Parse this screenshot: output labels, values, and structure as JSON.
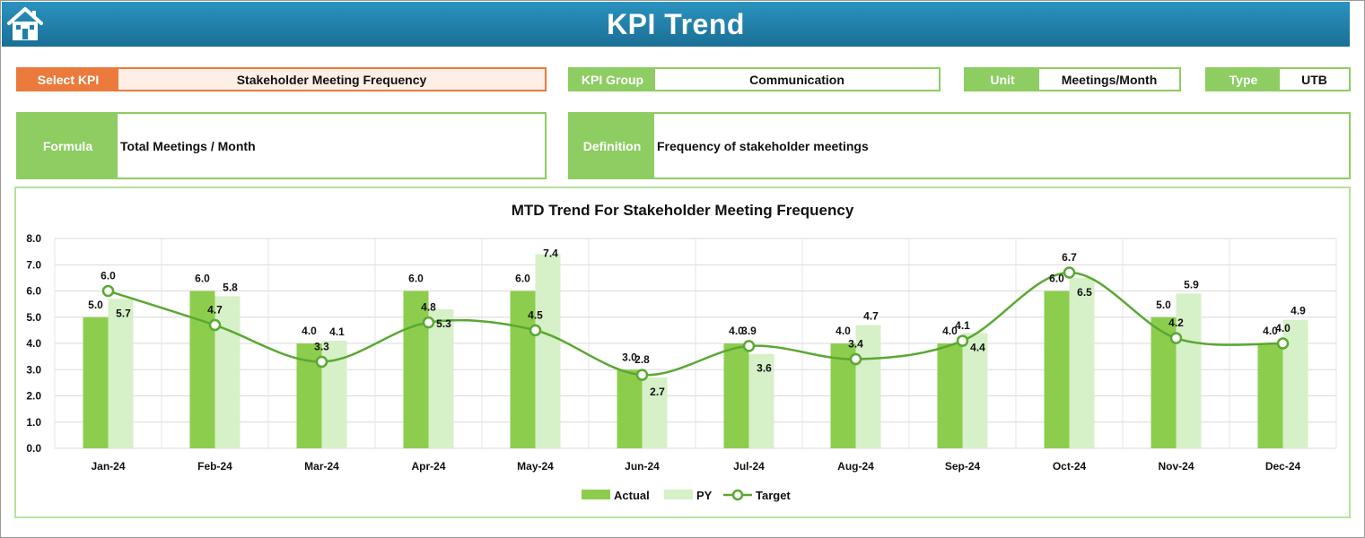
{
  "header": {
    "title": "KPI Trend",
    "home_icon": "home-icon"
  },
  "select_kpi": {
    "label": "Select KPI",
    "value": "Stakeholder Meeting Frequency"
  },
  "kpi_group": {
    "label": "KPI Group",
    "value": "Communication"
  },
  "unit": {
    "label": "Unit",
    "value": "Meetings/Month"
  },
  "type": {
    "label": "Type",
    "value": "UTB"
  },
  "formula": {
    "label": "Formula",
    "value": "Total Meetings / Month"
  },
  "definition": {
    "label": "Definition",
    "value": "Frequency of stakeholder meetings"
  },
  "colors": {
    "actual": "#8dcd4e",
    "py": "#d6f0c8",
    "target": "#5aa832",
    "orange": "#ec7a3c",
    "green": "#8dcd62",
    "header": "#1f7fab"
  },
  "chart_data": {
    "type": "bar",
    "title": "MTD Trend For Stakeholder Meeting Frequency",
    "categories": [
      "Jan-24",
      "Feb-24",
      "Mar-24",
      "Apr-24",
      "May-24",
      "Jun-24",
      "Jul-24",
      "Aug-24",
      "Sep-24",
      "Oct-24",
      "Nov-24",
      "Dec-24"
    ],
    "ylim": [
      0,
      8
    ],
    "yticks": [
      "0.0",
      "1.0",
      "2.0",
      "3.0",
      "4.0",
      "5.0",
      "6.0",
      "7.0",
      "8.0"
    ],
    "grid": true,
    "legend_position": "bottom",
    "series": [
      {
        "name": "Actual",
        "kind": "bar",
        "values": [
          5.0,
          6.0,
          4.0,
          6.0,
          6.0,
          3.0,
          4.0,
          4.0,
          4.0,
          6.0,
          5.0,
          4.0
        ],
        "labels": [
          "5.0",
          "6.0",
          "4.0",
          "6.0",
          "6.0",
          "3.0",
          "4.0",
          "4.0",
          "4.0",
          "6.0",
          "5.0",
          "4.0"
        ]
      },
      {
        "name": "PY",
        "kind": "bar",
        "values": [
          5.7,
          5.8,
          4.1,
          5.3,
          7.4,
          2.7,
          3.6,
          4.7,
          4.4,
          6.5,
          5.9,
          4.9
        ],
        "labels": [
          "5.7",
          "5.8",
          "4.1",
          "5.3",
          "7.4",
          "2.7",
          "3.6",
          "4.7",
          "4.4",
          "6.5",
          "5.9",
          "4.9"
        ]
      },
      {
        "name": "Target",
        "kind": "line",
        "values": [
          6.0,
          4.7,
          3.3,
          4.8,
          4.5,
          2.8,
          3.9,
          3.4,
          4.1,
          6.7,
          4.2,
          4.0
        ],
        "labels": [
          "6.0",
          "4.7",
          "3.3",
          "4.8",
          "4.5",
          "2.8",
          "3.9",
          "3.4",
          "4.1",
          "6.7",
          "4.2",
          "4.0"
        ]
      }
    ]
  }
}
